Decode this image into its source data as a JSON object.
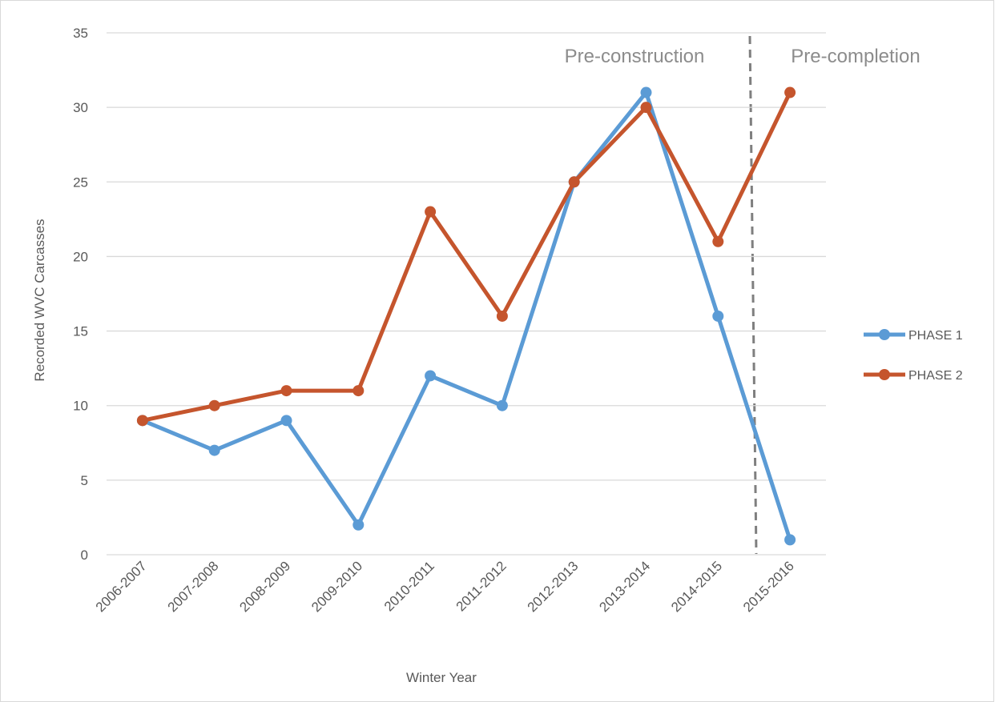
{
  "chart_data": {
    "type": "line",
    "x_label": "Winter Year",
    "y_label": "Recorded WVC Carcasses",
    "annotations": [
      "Pre-construction",
      "Pre-completion"
    ],
    "categories": [
      "2006-2007",
      "2007-2008",
      "2008-2009",
      "2009-2010",
      "2010-2011",
      "2011-2012",
      "2012-2013",
      "2013-2014",
      "2014-2015",
      "2015-2016"
    ],
    "series": [
      {
        "name": "PHASE 1",
        "color": "#5b9bd5",
        "values": [
          9,
          7,
          9,
          2,
          12,
          10,
          25,
          31,
          16,
          1
        ]
      },
      {
        "name": "PHASE 2",
        "color": "#c5552d",
        "values": [
          9,
          10,
          11,
          11,
          23,
          16,
          25,
          30,
          21,
          31
        ]
      }
    ],
    "ylim": [
      0,
      35
    ],
    "yticks": [
      0,
      5,
      10,
      15,
      20,
      25,
      30,
      35
    ],
    "grid": true,
    "legend": "right"
  }
}
